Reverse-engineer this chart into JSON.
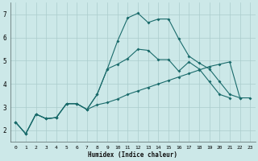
{
  "xlabel": "Humidex (Indice chaleur)",
  "bg_color": "#cce8e8",
  "grid_color": "#aacccc",
  "line_color": "#1a6b6b",
  "xlim": [
    -0.5,
    23.5
  ],
  "ylim": [
    1.5,
    7.5
  ],
  "xticks": [
    0,
    1,
    2,
    3,
    4,
    5,
    6,
    7,
    8,
    9,
    10,
    11,
    12,
    13,
    14,
    15,
    16,
    17,
    18,
    19,
    20,
    21,
    22,
    23
  ],
  "yticks": [
    2,
    3,
    4,
    5,
    6,
    7
  ],
  "line1_x": [
    0,
    1,
    2,
    3,
    4,
    5,
    6,
    7,
    8,
    9,
    10,
    11,
    12,
    13,
    14,
    15,
    16,
    17,
    18,
    19,
    20,
    21,
    22,
    23
  ],
  "line1_y": [
    2.35,
    1.85,
    2.7,
    2.5,
    2.55,
    3.15,
    3.15,
    2.9,
    3.55,
    4.65,
    4.85,
    5.1,
    5.5,
    5.45,
    5.05,
    5.05,
    4.55,
    4.95,
    4.65,
    4.1,
    3.55,
    3.4,
    null,
    null
  ],
  "line2_x": [
    0,
    1,
    2,
    3,
    4,
    5,
    6,
    7,
    8,
    9,
    10,
    11,
    12,
    13,
    14,
    15,
    16,
    17,
    18,
    19,
    20,
    21,
    22,
    23
  ],
  "line2_y": [
    2.35,
    1.85,
    2.7,
    2.5,
    2.55,
    3.15,
    3.15,
    2.9,
    3.55,
    4.65,
    5.85,
    6.85,
    7.05,
    6.65,
    6.8,
    6.8,
    5.95,
    5.2,
    4.9,
    4.65,
    4.1,
    3.55,
    3.4,
    null
  ],
  "line3_x": [
    0,
    1,
    2,
    3,
    4,
    5,
    6,
    7,
    8,
    9,
    10,
    11,
    12,
    13,
    14,
    15,
    16,
    17,
    18,
    19,
    20,
    21,
    22,
    23
  ],
  "line3_y": [
    2.35,
    1.85,
    2.7,
    2.5,
    2.55,
    3.15,
    3.15,
    2.9,
    3.1,
    3.2,
    3.35,
    3.55,
    3.7,
    3.85,
    4.0,
    4.15,
    4.3,
    4.45,
    4.6,
    4.75,
    4.85,
    4.95,
    3.4,
    3.4
  ]
}
